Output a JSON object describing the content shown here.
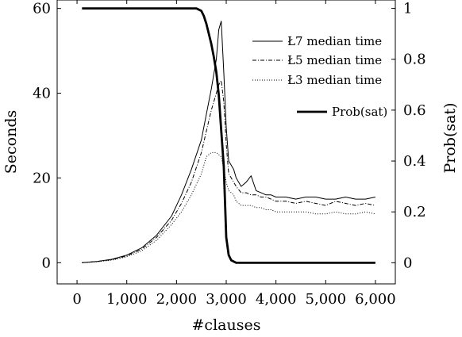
{
  "chart_data": {
    "type": "line",
    "xlabel": "#clauses",
    "ylabel_left": "Seconds",
    "ylabel_right": "Prob(sat)",
    "xlim": [
      -400,
      6400
    ],
    "ylim_left": [
      -5,
      62
    ],
    "ylim_right": [
      -0.083,
      1.033
    ],
    "x_ticks": [
      0,
      1000,
      2000,
      3000,
      4000,
      5000,
      6000
    ],
    "x_tick_labels": [
      "0",
      "1,000",
      "2,000",
      "3,000",
      "4,000",
      "5,000",
      "6,000"
    ],
    "y_left_ticks": [
      0,
      20,
      40,
      60
    ],
    "y_left_tick_labels": [
      "0",
      "20",
      "40",
      "60"
    ],
    "y_right_ticks": [
      0,
      0.2,
      0.4,
      0.6,
      0.8,
      1
    ],
    "y_right_tick_labels": [
      "0",
      "0.2",
      "0.4",
      "0.6",
      "0.8",
      "1"
    ],
    "grid": false,
    "legend_position": "top-right",
    "series": [
      {
        "name": "Ł7 median time",
        "axis": "left",
        "style": "solid",
        "x": [
          100,
          400,
          700,
          1000,
          1300,
          1600,
          1900,
          2100,
          2300,
          2500,
          2600,
          2700,
          2800,
          2850,
          2900,
          2950,
          3000,
          3050,
          3100,
          3150,
          3200,
          3300,
          3400,
          3500,
          3600,
          3700,
          3800,
          3900,
          4000,
          4200,
          4400,
          4600,
          4800,
          5000,
          5200,
          5400,
          5600,
          5800,
          6000
        ],
        "values": [
          0,
          0.3,
          0.8,
          1.8,
          3.5,
          6.5,
          11,
          16,
          22,
          29,
          35,
          41,
          48,
          55,
          57,
          45,
          32,
          24,
          23,
          22,
          20,
          18,
          19,
          20.5,
          17,
          16.5,
          16,
          16,
          15.5,
          15.5,
          15,
          15.5,
          15.5,
          15,
          15,
          15.5,
          15,
          15,
          15.5
        ]
      },
      {
        "name": "Ł5 median time",
        "axis": "left",
        "style": "dashdot",
        "x": [
          100,
          400,
          700,
          1000,
          1300,
          1600,
          1900,
          2100,
          2300,
          2500,
          2600,
          2700,
          2800,
          2850,
          2900,
          2950,
          3000,
          3050,
          3100,
          3150,
          3200,
          3300,
          3400,
          3500,
          3600,
          3700,
          3800,
          3900,
          4000,
          4200,
          4400,
          4600,
          4800,
          5000,
          5200,
          5400,
          5600,
          5800,
          6000
        ],
        "values": [
          0,
          0.3,
          0.7,
          1.6,
          3.2,
          6,
          10,
          14,
          19,
          26,
          31,
          36,
          40,
          42,
          43,
          38,
          28,
          21,
          20,
          19,
          18,
          16.5,
          16.5,
          16,
          16,
          15.5,
          15.5,
          15,
          14.5,
          14.5,
          14,
          14.5,
          14,
          13.5,
          14.5,
          14,
          13.5,
          14,
          13.5
        ]
      },
      {
        "name": "Ł3 median time",
        "axis": "left",
        "style": "dotted",
        "x": [
          100,
          400,
          700,
          1000,
          1300,
          1600,
          1900,
          2100,
          2300,
          2500,
          2600,
          2700,
          2800,
          2850,
          2900,
          2950,
          3000,
          3050,
          3100,
          3150,
          3200,
          3300,
          3400,
          3500,
          3600,
          3700,
          3800,
          3900,
          4000,
          4200,
          4400,
          4600,
          4800,
          5000,
          5200,
          5400,
          5600,
          5800,
          6000
        ],
        "values": [
          0,
          0.2,
          0.6,
          1.4,
          2.8,
          5.3,
          9,
          12,
          16,
          21,
          25,
          26,
          26,
          25.5,
          25,
          22,
          19,
          17,
          16.5,
          16,
          14.5,
          13.5,
          13.5,
          13.5,
          13,
          13,
          12.5,
          12.5,
          12,
          12,
          12,
          12,
          11.5,
          11.5,
          12,
          11.5,
          11.5,
          12,
          11.5
        ]
      },
      {
        "name": "Prob(sat)",
        "axis": "right",
        "style": "thick",
        "x": [
          100,
          500,
          1000,
          1500,
          2000,
          2400,
          2500,
          2550,
          2600,
          2650,
          2700,
          2750,
          2800,
          2850,
          2900,
          2950,
          3000,
          3050,
          3100,
          3200,
          4000,
          5000,
          6000
        ],
        "values": [
          1,
          1,
          1,
          1,
          1,
          1,
          0.99,
          0.97,
          0.94,
          0.9,
          0.86,
          0.81,
          0.75,
          0.66,
          0.52,
          0.38,
          0.1,
          0.03,
          0.01,
          0,
          0,
          0,
          0
        ]
      }
    ]
  }
}
